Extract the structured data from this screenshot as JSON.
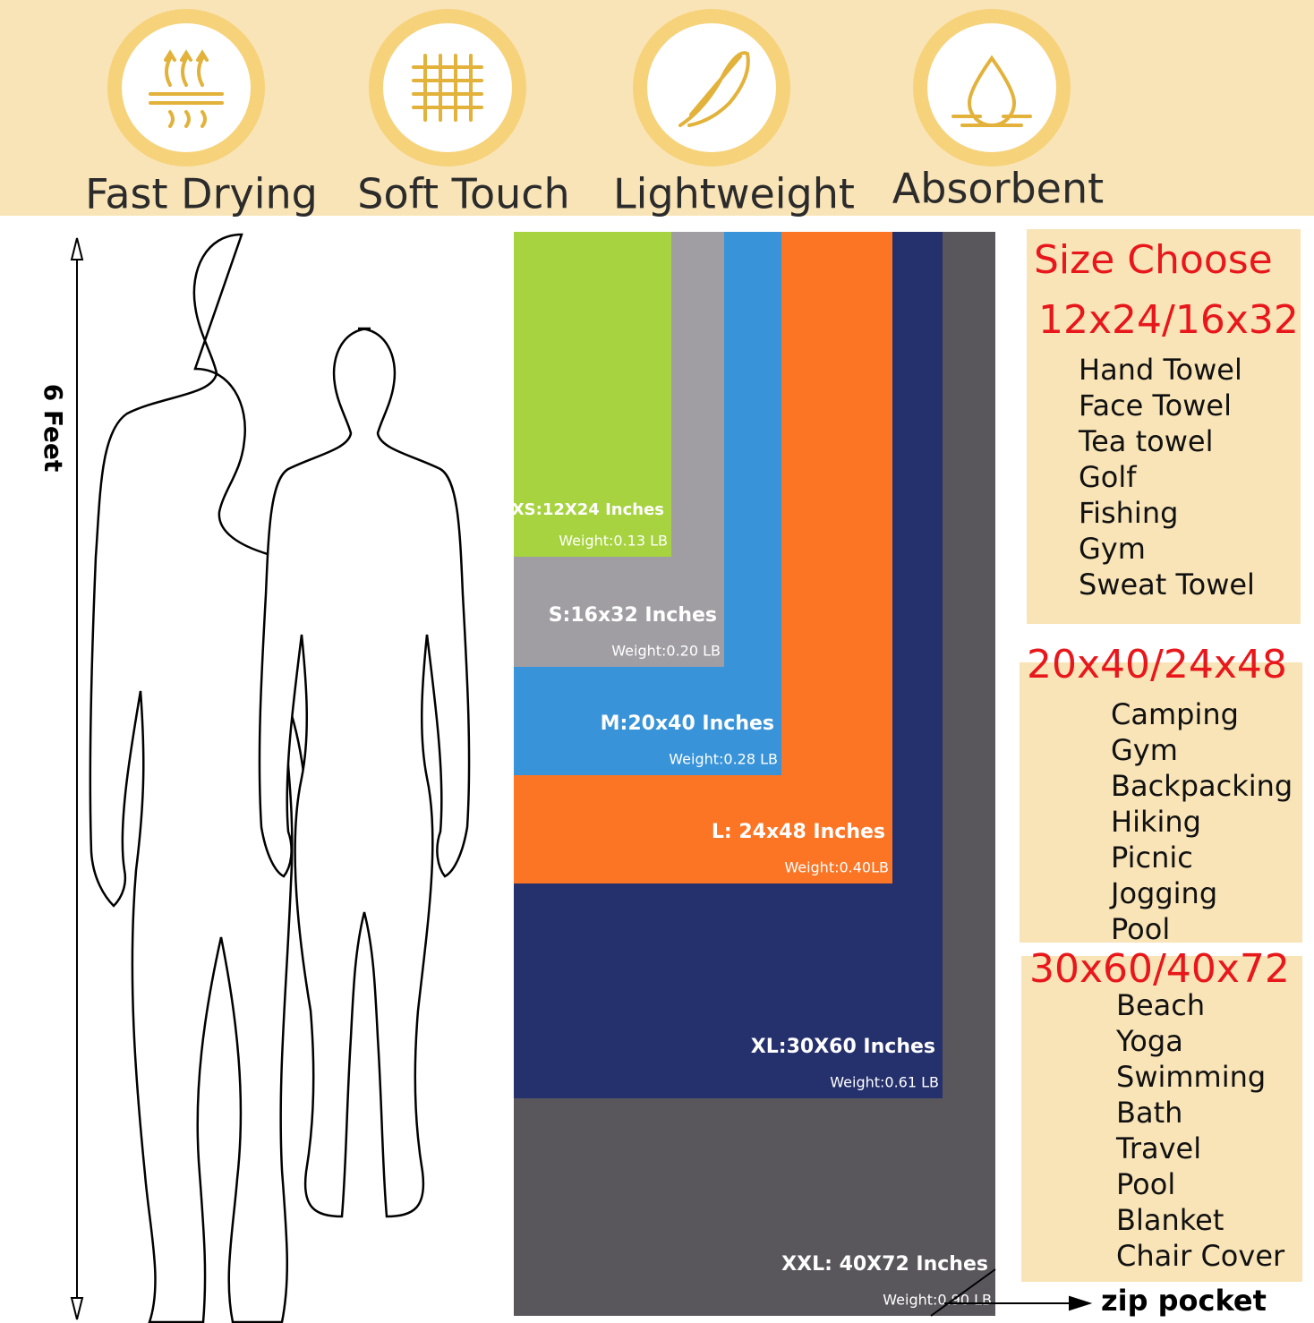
{
  "features": [
    "Fast Drying",
    "Soft Touch",
    "Lightweight",
    "Absorbent"
  ],
  "height_label": "6 Feet",
  "sizes": [
    {
      "label": "XS:12X24 Inches",
      "weight": "Weight:0.13 LB"
    },
    {
      "label": "S:16x32 Inches",
      "weight": "Weight:0.20 LB"
    },
    {
      "label": "M:20x40 Inches",
      "weight": "Weight:0.28 LB"
    },
    {
      "label": "L: 24x48 Inches",
      "weight": "Weight:0.40LB"
    },
    {
      "label": "XL:30X60 Inches",
      "weight": "Weight:0.61 LB"
    },
    {
      "label": "XXL: 40X72 Inches",
      "weight": "Weight:0.90 LB"
    }
  ],
  "size_choose": {
    "title": "Size Choose",
    "groups": [
      {
        "heading": "12x24/16x32",
        "uses": [
          "Hand Towel",
          "Face Towel",
          "Tea towel",
          "Golf",
          "Fishing",
          "Gym",
          "Sweat Towel"
        ]
      },
      {
        "heading": "20x40/24x48",
        "uses": [
          "Camping",
          "Gym",
          "Backpacking",
          "Hiking",
          "Picnic",
          "Jogging",
          "Pool"
        ]
      },
      {
        "heading": "30x60/40x72",
        "uses": [
          "Beach",
          "Yoga",
          "Swimming",
          "Bath",
          "Travel",
          "Pool",
          "Blanket",
          "Chair Cover"
        ]
      }
    ]
  },
  "zip_pocket": "zip pocket"
}
